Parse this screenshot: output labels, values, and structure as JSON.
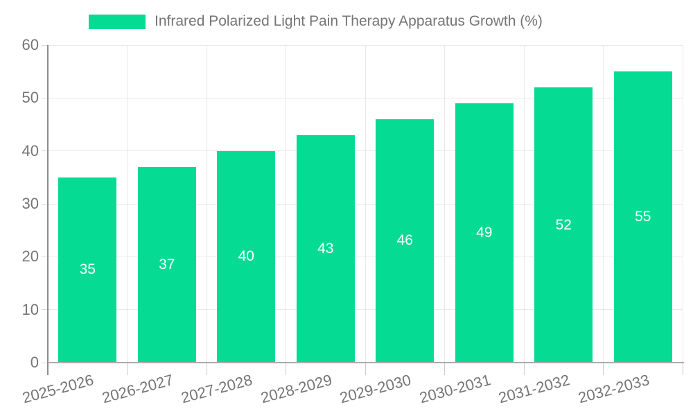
{
  "chart_data": {
    "type": "bar",
    "title": "Infrared Polarized Light Pain Therapy Apparatus Growth (%)",
    "legend": {
      "label": "Infrared Polarized Light Pain Therapy Apparatus Growth (%)",
      "position": "top"
    },
    "categories": [
      "2025-2026",
      "2026-2027",
      "2027-2028",
      "2028-2029",
      "2029-2030",
      "2030-2031",
      "2031-2032",
      "2032-2033"
    ],
    "series": [
      {
        "name": "Infrared Polarized Light Pain Therapy Apparatus Growth (%)",
        "values": [
          35,
          37,
          40,
          43,
          46,
          49,
          52,
          55
        ]
      }
    ],
    "xlabel": "",
    "ylabel": "",
    "ylim": [
      0,
      60
    ],
    "yticks": [
      0,
      10,
      20,
      30,
      40,
      50,
      60
    ],
    "grid": true,
    "value_labels_inside_bars": true
  },
  "colors": {
    "bar": "#06db93",
    "grid": "#e8e8e8",
    "axis_y": "#8c8c8c",
    "axis_x": "#ababab",
    "text": "#757575",
    "value_label": "#ffffff"
  }
}
